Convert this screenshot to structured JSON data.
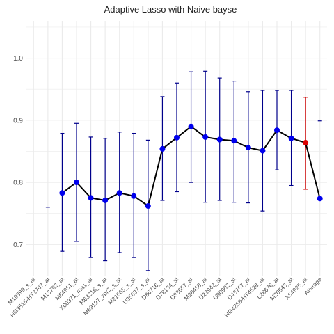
{
  "chart_data": {
    "type": "line",
    "title": "Adaptive Lasso  with Naive bayse",
    "xlabel": "",
    "ylabel": "",
    "ylim": [
      0.65,
      1.06
    ],
    "yticks": [
      0.7,
      0.8,
      0.9,
      1.0
    ],
    "ytick_labels": [
      "0.7",
      "0.8",
      "0.9",
      "1.0"
    ],
    "grid": true,
    "categories": [
      "M19399_s_at",
      "HG3515-HT3707_at",
      "M13792_at",
      "M54951_at",
      "X00371_rna1_at",
      "M63216_s_at",
      "M69197_xpr2_s_at",
      "M21665_s_at",
      "U35637_s_at",
      "D86716_at",
      "D78134_at",
      "D83657_at",
      "M28458_at",
      "U23942_at",
      "U90902_at",
      "D43767_at",
      "HG4258-HT4528_at",
      "L28676_at",
      "M20543_at",
      "X54925_at",
      "Average"
    ],
    "series": [
      {
        "values": [
          null,
          null,
          0.783,
          0.8,
          0.775,
          0.771,
          0.783,
          0.778,
          0.762,
          0.854,
          0.872,
          0.89,
          0.873,
          0.869,
          0.867,
          0.856,
          0.851,
          0.884,
          0.871,
          0.864,
          0.774
        ],
        "lower": [
          null,
          0.76,
          0.689,
          0.705,
          0.679,
          0.674,
          0.687,
          0.679,
          0.658,
          0.771,
          0.785,
          0.8,
          0.768,
          0.771,
          0.768,
          0.767,
          0.754,
          0.82,
          0.795,
          0.789,
          null
        ],
        "upper": [
          null,
          0.76,
          0.879,
          0.895,
          0.873,
          0.871,
          0.881,
          0.879,
          0.868,
          0.938,
          0.96,
          0.978,
          0.979,
          0.968,
          0.963,
          0.946,
          0.948,
          0.948,
          0.948,
          0.937,
          0.899
        ]
      }
    ],
    "colors": {
      "line": "#000000",
      "point": "#0000ee",
      "error_bar": "#00008b",
      "highlight_point": "#dd0000",
      "highlight_bar": "#cc0000",
      "grid": "#ebebeb"
    },
    "highlight_index": 19
  }
}
